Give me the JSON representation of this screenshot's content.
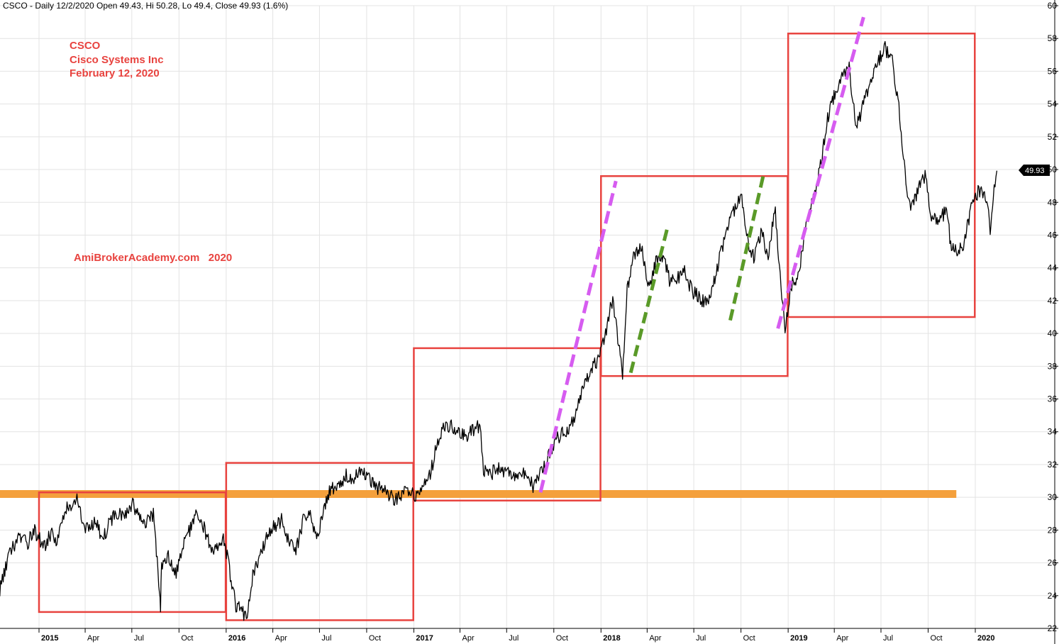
{
  "header": {
    "title": "CSCO - Daily 12/2/2020 Open 49.43, Hi 50.28, Lo 49.4, Close 49.93 (1.6%)"
  },
  "annotations": {
    "ticker": "CSCO",
    "company": "Cisco Systems Inc",
    "date": "February 12, 2020",
    "watermark": "AmiBrokerAcademy.com   2020"
  },
  "last_price_tag": "49.93",
  "colors": {
    "box": "#e8433f",
    "support": "#f4a03c",
    "magenta_trend": "#d65cf0",
    "green_trend": "#5a9a28",
    "price": "#000000",
    "annotation": "#e8433f"
  },
  "chart_data": {
    "type": "line",
    "title": "CSCO - Daily 12/2/2020 Open 49.43, Hi 50.28, Lo 49.4, Close 49.93 (1.6%)",
    "xlabel": "",
    "ylabel": "",
    "ylim": [
      22,
      60
    ],
    "xlim": [
      "2014-09-01",
      "2020-02-25"
    ],
    "y_ticks": [
      22,
      24,
      26,
      28,
      30,
      32,
      34,
      36,
      38,
      40,
      42,
      44,
      46,
      48,
      50,
      52,
      54,
      56,
      58,
      60
    ],
    "y_axis_side": "right",
    "grid": true,
    "x_ticks": [
      {
        "date": "2015-01-01",
        "label": "2015",
        "year": true
      },
      {
        "date": "2015-04-01",
        "label": "Apr",
        "year": false
      },
      {
        "date": "2015-07-01",
        "label": "Jul",
        "year": false
      },
      {
        "date": "2015-10-01",
        "label": "Oct",
        "year": false
      },
      {
        "date": "2016-01-01",
        "label": "2016",
        "year": true
      },
      {
        "date": "2016-04-01",
        "label": "Apr",
        "year": false
      },
      {
        "date": "2016-07-01",
        "label": "Jul",
        "year": false
      },
      {
        "date": "2016-10-01",
        "label": "Oct",
        "year": false
      },
      {
        "date": "2017-01-01",
        "label": "2017",
        "year": true
      },
      {
        "date": "2017-04-01",
        "label": "Apr",
        "year": false
      },
      {
        "date": "2017-07-01",
        "label": "Jul",
        "year": false
      },
      {
        "date": "2017-10-01",
        "label": "Oct",
        "year": false
      },
      {
        "date": "2018-01-01",
        "label": "2018",
        "year": true
      },
      {
        "date": "2018-04-01",
        "label": "Apr",
        "year": false
      },
      {
        "date": "2018-07-01",
        "label": "Jul",
        "year": false
      },
      {
        "date": "2018-10-01",
        "label": "Oct",
        "year": false
      },
      {
        "date": "2019-01-01",
        "label": "2019",
        "year": true
      },
      {
        "date": "2019-04-01",
        "label": "Apr",
        "year": false
      },
      {
        "date": "2019-07-01",
        "label": "Jul",
        "year": false
      },
      {
        "date": "2019-10-01",
        "label": "Oct",
        "year": false
      },
      {
        "date": "2020-01-01",
        "label": "2020",
        "year": true
      }
    ],
    "series": [
      {
        "name": "CSCO",
        "points": [
          [
            "2014-09-03",
            23.6
          ],
          [
            "2014-09-25",
            24.8
          ],
          [
            "2014-10-15",
            24.2
          ],
          [
            "2014-11-05",
            26.6
          ],
          [
            "2014-11-25",
            27.6
          ],
          [
            "2014-12-10",
            27.2
          ],
          [
            "2014-12-22",
            28.0
          ],
          [
            "2015-01-12",
            27.0
          ],
          [
            "2015-01-26",
            27.9
          ],
          [
            "2015-02-05",
            27.4
          ],
          [
            "2015-02-20",
            29.2
          ],
          [
            "2015-03-06",
            29.4
          ],
          [
            "2015-03-16",
            30.0
          ],
          [
            "2015-03-26",
            28.4
          ],
          [
            "2015-04-08",
            28.0
          ],
          [
            "2015-04-22",
            28.6
          ],
          [
            "2015-05-06",
            27.4
          ],
          [
            "2015-05-20",
            28.6
          ],
          [
            "2015-06-03",
            29.1
          ],
          [
            "2015-06-17",
            29.0
          ],
          [
            "2015-07-01",
            29.6
          ],
          [
            "2015-07-15",
            29.0
          ],
          [
            "2015-07-29",
            28.4
          ],
          [
            "2015-08-12",
            28.9
          ],
          [
            "2015-08-24",
            24.4
          ],
          [
            "2015-08-26",
            23.0
          ],
          [
            "2015-08-28",
            25.8
          ],
          [
            "2015-09-10",
            26.4
          ],
          [
            "2015-09-24",
            25.3
          ],
          [
            "2015-10-08",
            26.9
          ],
          [
            "2015-10-22",
            28.0
          ],
          [
            "2015-11-03",
            29.0
          ],
          [
            "2015-11-16",
            28.4
          ],
          [
            "2015-11-30",
            27.1
          ],
          [
            "2015-12-14",
            26.8
          ],
          [
            "2015-12-28",
            27.4
          ],
          [
            "2016-01-06",
            25.8
          ],
          [
            "2016-01-20",
            23.4
          ],
          [
            "2016-02-01",
            23.0
          ],
          [
            "2016-02-11",
            22.7
          ],
          [
            "2016-02-22",
            25.4
          ],
          [
            "2016-03-07",
            26.4
          ],
          [
            "2016-03-21",
            27.6
          ],
          [
            "2016-04-04",
            28.3
          ],
          [
            "2016-04-18",
            28.6
          ],
          [
            "2016-05-02",
            27.4
          ],
          [
            "2016-05-16",
            26.7
          ],
          [
            "2016-05-30",
            28.6
          ],
          [
            "2016-06-13",
            28.9
          ],
          [
            "2016-06-27",
            27.6
          ],
          [
            "2016-07-11",
            29.6
          ],
          [
            "2016-07-25",
            30.6
          ],
          [
            "2016-08-08",
            30.8
          ],
          [
            "2016-08-22",
            31.4
          ],
          [
            "2016-09-06",
            31.1
          ],
          [
            "2016-09-20",
            31.6
          ],
          [
            "2016-10-04",
            31.2
          ],
          [
            "2016-10-18",
            30.6
          ],
          [
            "2016-11-01",
            30.5
          ],
          [
            "2016-11-15",
            30.1
          ],
          [
            "2016-11-29",
            29.8
          ],
          [
            "2016-12-12",
            30.4
          ],
          [
            "2016-12-28",
            30.2
          ],
          [
            "2017-01-09",
            30.0
          ],
          [
            "2017-01-19",
            30.6
          ],
          [
            "2017-02-02",
            31.3
          ],
          [
            "2017-02-15",
            33.4
          ],
          [
            "2017-03-01",
            34.2
          ],
          [
            "2017-03-15",
            34.3
          ],
          [
            "2017-03-29",
            34.0
          ],
          [
            "2017-04-12",
            33.6
          ],
          [
            "2017-04-26",
            34.1
          ],
          [
            "2017-05-10",
            34.3
          ],
          [
            "2017-05-17",
            31.6
          ],
          [
            "2017-05-31",
            31.4
          ],
          [
            "2017-06-14",
            31.8
          ],
          [
            "2017-06-28",
            31.6
          ],
          [
            "2017-07-12",
            31.2
          ],
          [
            "2017-07-26",
            31.5
          ],
          [
            "2017-08-09",
            31.3
          ],
          [
            "2017-08-23",
            30.6
          ],
          [
            "2017-09-06",
            31.5
          ],
          [
            "2017-09-20",
            32.4
          ],
          [
            "2017-10-02",
            33.4
          ],
          [
            "2017-10-16",
            33.9
          ],
          [
            "2017-10-30",
            34.2
          ],
          [
            "2017-11-15",
            35.2
          ],
          [
            "2017-11-29",
            37.0
          ],
          [
            "2017-12-13",
            37.9
          ],
          [
            "2017-12-28",
            38.3
          ],
          [
            "2018-01-10",
            40.0
          ],
          [
            "2018-01-24",
            42.2
          ],
          [
            "2018-02-06",
            39.0
          ],
          [
            "2018-02-12",
            37.4
          ],
          [
            "2018-02-21",
            42.6
          ],
          [
            "2018-03-07",
            44.8
          ],
          [
            "2018-03-21",
            45.2
          ],
          [
            "2018-04-04",
            42.8
          ],
          [
            "2018-04-18",
            44.4
          ],
          [
            "2018-05-02",
            44.7
          ],
          [
            "2018-05-16",
            43.1
          ],
          [
            "2018-05-30",
            43.4
          ],
          [
            "2018-06-13",
            43.8
          ],
          [
            "2018-06-27",
            42.6
          ],
          [
            "2018-07-11",
            42.2
          ],
          [
            "2018-07-25",
            41.8
          ],
          [
            "2018-08-08",
            43.0
          ],
          [
            "2018-08-20",
            44.6
          ],
          [
            "2018-09-04",
            46.2
          ],
          [
            "2018-09-18",
            47.6
          ],
          [
            "2018-10-01",
            48.6
          ],
          [
            "2018-10-12",
            45.9
          ],
          [
            "2018-10-26",
            44.6
          ],
          [
            "2018-11-09",
            46.2
          ],
          [
            "2018-11-23",
            44.8
          ],
          [
            "2018-12-07",
            47.6
          ],
          [
            "2018-12-18",
            42.6
          ],
          [
            "2018-12-26",
            40.4
          ],
          [
            "2019-01-08",
            43.0
          ],
          [
            "2019-01-22",
            43.6
          ],
          [
            "2019-02-05",
            46.4
          ],
          [
            "2019-02-19",
            48.2
          ],
          [
            "2019-03-05",
            50.2
          ],
          [
            "2019-03-19",
            53.2
          ],
          [
            "2019-04-02",
            54.6
          ],
          [
            "2019-04-16",
            56.0
          ],
          [
            "2019-04-30",
            56.2
          ],
          [
            "2019-05-14",
            52.6
          ],
          [
            "2019-05-28",
            54.0
          ],
          [
            "2019-06-11",
            55.2
          ],
          [
            "2019-06-25",
            56.6
          ],
          [
            "2019-07-09",
            57.4
          ],
          [
            "2019-07-23",
            56.6
          ],
          [
            "2019-08-05",
            53.8
          ],
          [
            "2019-08-14",
            50.5
          ],
          [
            "2019-08-28",
            47.4
          ],
          [
            "2019-09-11",
            48.8
          ],
          [
            "2019-09-25",
            49.6
          ],
          [
            "2019-10-09",
            47.0
          ],
          [
            "2019-10-23",
            46.9
          ],
          [
            "2019-11-06",
            47.6
          ],
          [
            "2019-11-14",
            45.3
          ],
          [
            "2019-11-28",
            44.9
          ],
          [
            "2019-12-12",
            45.7
          ],
          [
            "2019-12-24",
            47.8
          ],
          [
            "2020-01-08",
            48.8
          ],
          [
            "2020-01-22",
            48.4
          ],
          [
            "2020-01-30",
            46.4
          ],
          [
            "2020-02-05",
            48.3
          ],
          [
            "2020-02-12",
            49.93
          ]
        ]
      }
    ],
    "overlays": {
      "boxes": [
        {
          "x0": "2015-01-01",
          "x1": "2015-12-31",
          "y0": 23.0,
          "y1": 30.3
        },
        {
          "x0": "2016-01-01",
          "x1": "2016-12-31",
          "y0": 22.5,
          "y1": 32.1
        },
        {
          "x0": "2017-01-01",
          "x1": "2017-12-31",
          "y0": 29.8,
          "y1": 39.1
        },
        {
          "x0": "2018-01-01",
          "x1": "2018-12-31",
          "y0": 37.4,
          "y1": 49.6
        },
        {
          "x0": "2019-01-01",
          "x1": "2019-12-31",
          "y0": 41.0,
          "y1": 58.3
        }
      ],
      "support": {
        "x0": "2014-09-25",
        "x1": "2019-11-25",
        "y": 30.2
      },
      "magenta_trends": [
        {
          "from": [
            "2017-09-05",
            30.3
          ],
          "to": [
            "2018-01-30",
            49.3
          ]
        },
        {
          "from": [
            "2018-12-12",
            40.3
          ],
          "to": [
            "2019-05-28",
            59.3
          ]
        }
      ],
      "green_trends": [
        {
          "from": [
            "2018-02-28",
            37.6
          ],
          "to": [
            "2018-05-11",
            46.5
          ]
        },
        {
          "from": [
            "2018-09-10",
            40.8
          ],
          "to": [
            "2018-11-14",
            49.7
          ]
        }
      ]
    }
  }
}
